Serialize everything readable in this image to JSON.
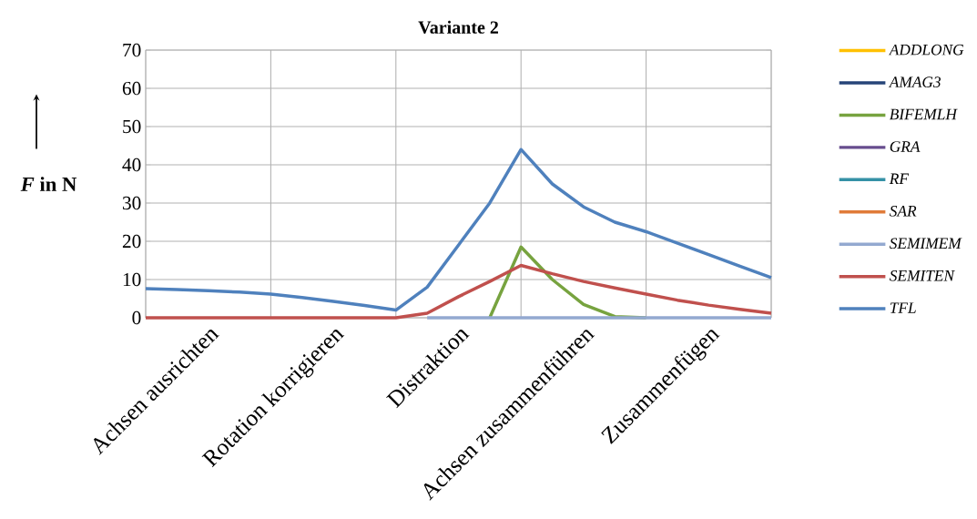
{
  "chart_data": {
    "type": "line",
    "title": "Variante 2",
    "ylabel": "*F* in N",
    "categories": [
      null,
      null,
      "Achsen ausrichten",
      null,
      null,
      null,
      "Rotation korrigieren",
      null,
      null,
      null,
      "Distraktion",
      null,
      null,
      null,
      "Achsen zusammenführen",
      null,
      null,
      null,
      "Zusammenfügen",
      null,
      null
    ],
    "ylim": [
      0,
      70
    ],
    "yticks": [
      0,
      10,
      20,
      30,
      40,
      50,
      60,
      70
    ],
    "grid": true,
    "legend": "right",
    "marker": "none",
    "line_style": "solid",
    "series": [
      {
        "name": "ADDLONG",
        "color": "#ffc000",
        "values": [
          null,
          null,
          null,
          null,
          null,
          null,
          null,
          null,
          null,
          null,
          null,
          null,
          null,
          null,
          null,
          null,
          null,
          null,
          null,
          null,
          null
        ]
      },
      {
        "name": "AMAG3",
        "color": "#264478",
        "values": [
          null,
          null,
          null,
          null,
          null,
          null,
          null,
          null,
          null,
          null,
          null,
          null,
          null,
          null,
          null,
          null,
          null,
          null,
          null,
          null,
          null
        ]
      },
      {
        "name": "BIFEMLH",
        "color": "#77a33f",
        "values": [
          null,
          null,
          null,
          null,
          null,
          null,
          null,
          null,
          null,
          null,
          null,
          0,
          18.5,
          10,
          3.5,
          0.3,
          0,
          null,
          null,
          null,
          null
        ]
      },
      {
        "name": "GRA",
        "color": "#674d8e",
        "values": [
          null,
          null,
          null,
          null,
          null,
          null,
          null,
          null,
          null,
          null,
          null,
          null,
          null,
          null,
          null,
          null,
          null,
          null,
          null,
          null,
          null
        ]
      },
      {
        "name": "RF",
        "color": "#3591a6",
        "values": [
          null,
          null,
          null,
          null,
          null,
          null,
          null,
          null,
          null,
          null,
          null,
          null,
          null,
          null,
          null,
          null,
          null,
          null,
          null,
          null,
          null
        ]
      },
      {
        "name": "SAR",
        "color": "#e07b39",
        "values": [
          null,
          null,
          null,
          null,
          null,
          null,
          null,
          null,
          null,
          null,
          null,
          null,
          null,
          null,
          null,
          null,
          null,
          null,
          null,
          null,
          null
        ]
      },
      {
        "name": "SEMIMEM",
        "color": "#93a9d0",
        "values": [
          null,
          null,
          null,
          null,
          null,
          null,
          null,
          null,
          null,
          0,
          0,
          0,
          0,
          0,
          0,
          0,
          0,
          0,
          0,
          0,
          0
        ]
      },
      {
        "name": "SEMITEN",
        "color": "#c0504d",
        "values": [
          0,
          0,
          0,
          0,
          0,
          0,
          0,
          0,
          0,
          1.2,
          5.5,
          9.5,
          13.7,
          11.5,
          9.5,
          7.8,
          6.2,
          4.6,
          3.3,
          2.2,
          1.2
        ]
      },
      {
        "name": "TFL",
        "color": "#4f81bd",
        "values": [
          7.6,
          7.4,
          7.1,
          6.7,
          6.2,
          5.3,
          4.3,
          3.2,
          2,
          8,
          19,
          30,
          44,
          35,
          29,
          25,
          22.5,
          19.5,
          16.5,
          13.5,
          10.5
        ]
      }
    ]
  }
}
